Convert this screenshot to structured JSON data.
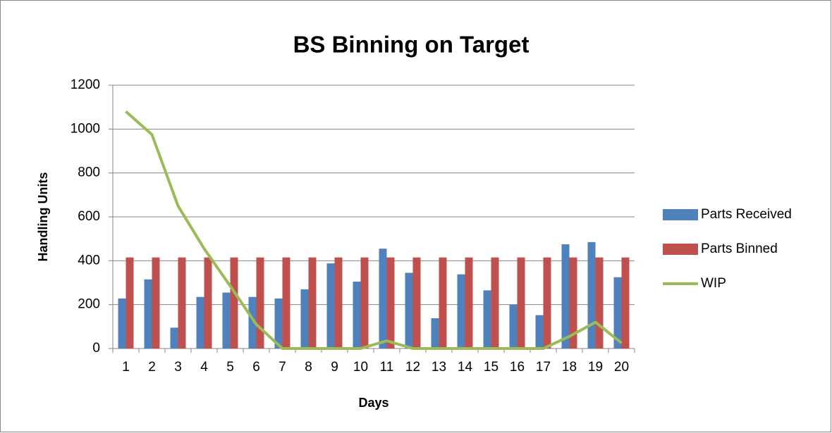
{
  "chart_data": {
    "type": "bar",
    "title": "BS Binning on Target",
    "x_label": "Days",
    "y_label": "Handling Units",
    "categories": [
      "1",
      "2",
      "3",
      "4",
      "5",
      "6",
      "7",
      "8",
      "9",
      "10",
      "11",
      "12",
      "13",
      "14",
      "15",
      "16",
      "17",
      "18",
      "19",
      "20"
    ],
    "series": [
      {
        "name": "Parts Received",
        "color": "#4f81bd",
        "values": [
          228,
          315,
          95,
          235,
          255,
          235,
          228,
          270,
          388,
          305,
          455,
          345,
          138,
          338,
          265,
          200,
          152,
          475,
          485,
          325
        ]
      },
      {
        "name": "Parts Binned",
        "color": "#c0504d",
        "values": [
          415,
          415,
          415,
          415,
          415,
          415,
          415,
          415,
          415,
          415,
          415,
          415,
          415,
          415,
          415,
          415,
          415,
          415,
          415,
          415
        ]
      },
      {
        "name": "WIP",
        "color": "#9bbb59",
        "type": "line",
        "values": [
          1080,
          975,
          650,
          455,
          285,
          110,
          0,
          0,
          0,
          0,
          35,
          0,
          0,
          0,
          0,
          0,
          0,
          55,
          120,
          25
        ]
      }
    ],
    "ylim": [
      0,
      1200
    ],
    "yticks": [
      0,
      200,
      400,
      600,
      800,
      1000,
      1200
    ],
    "grid": true,
    "legend": "right"
  }
}
